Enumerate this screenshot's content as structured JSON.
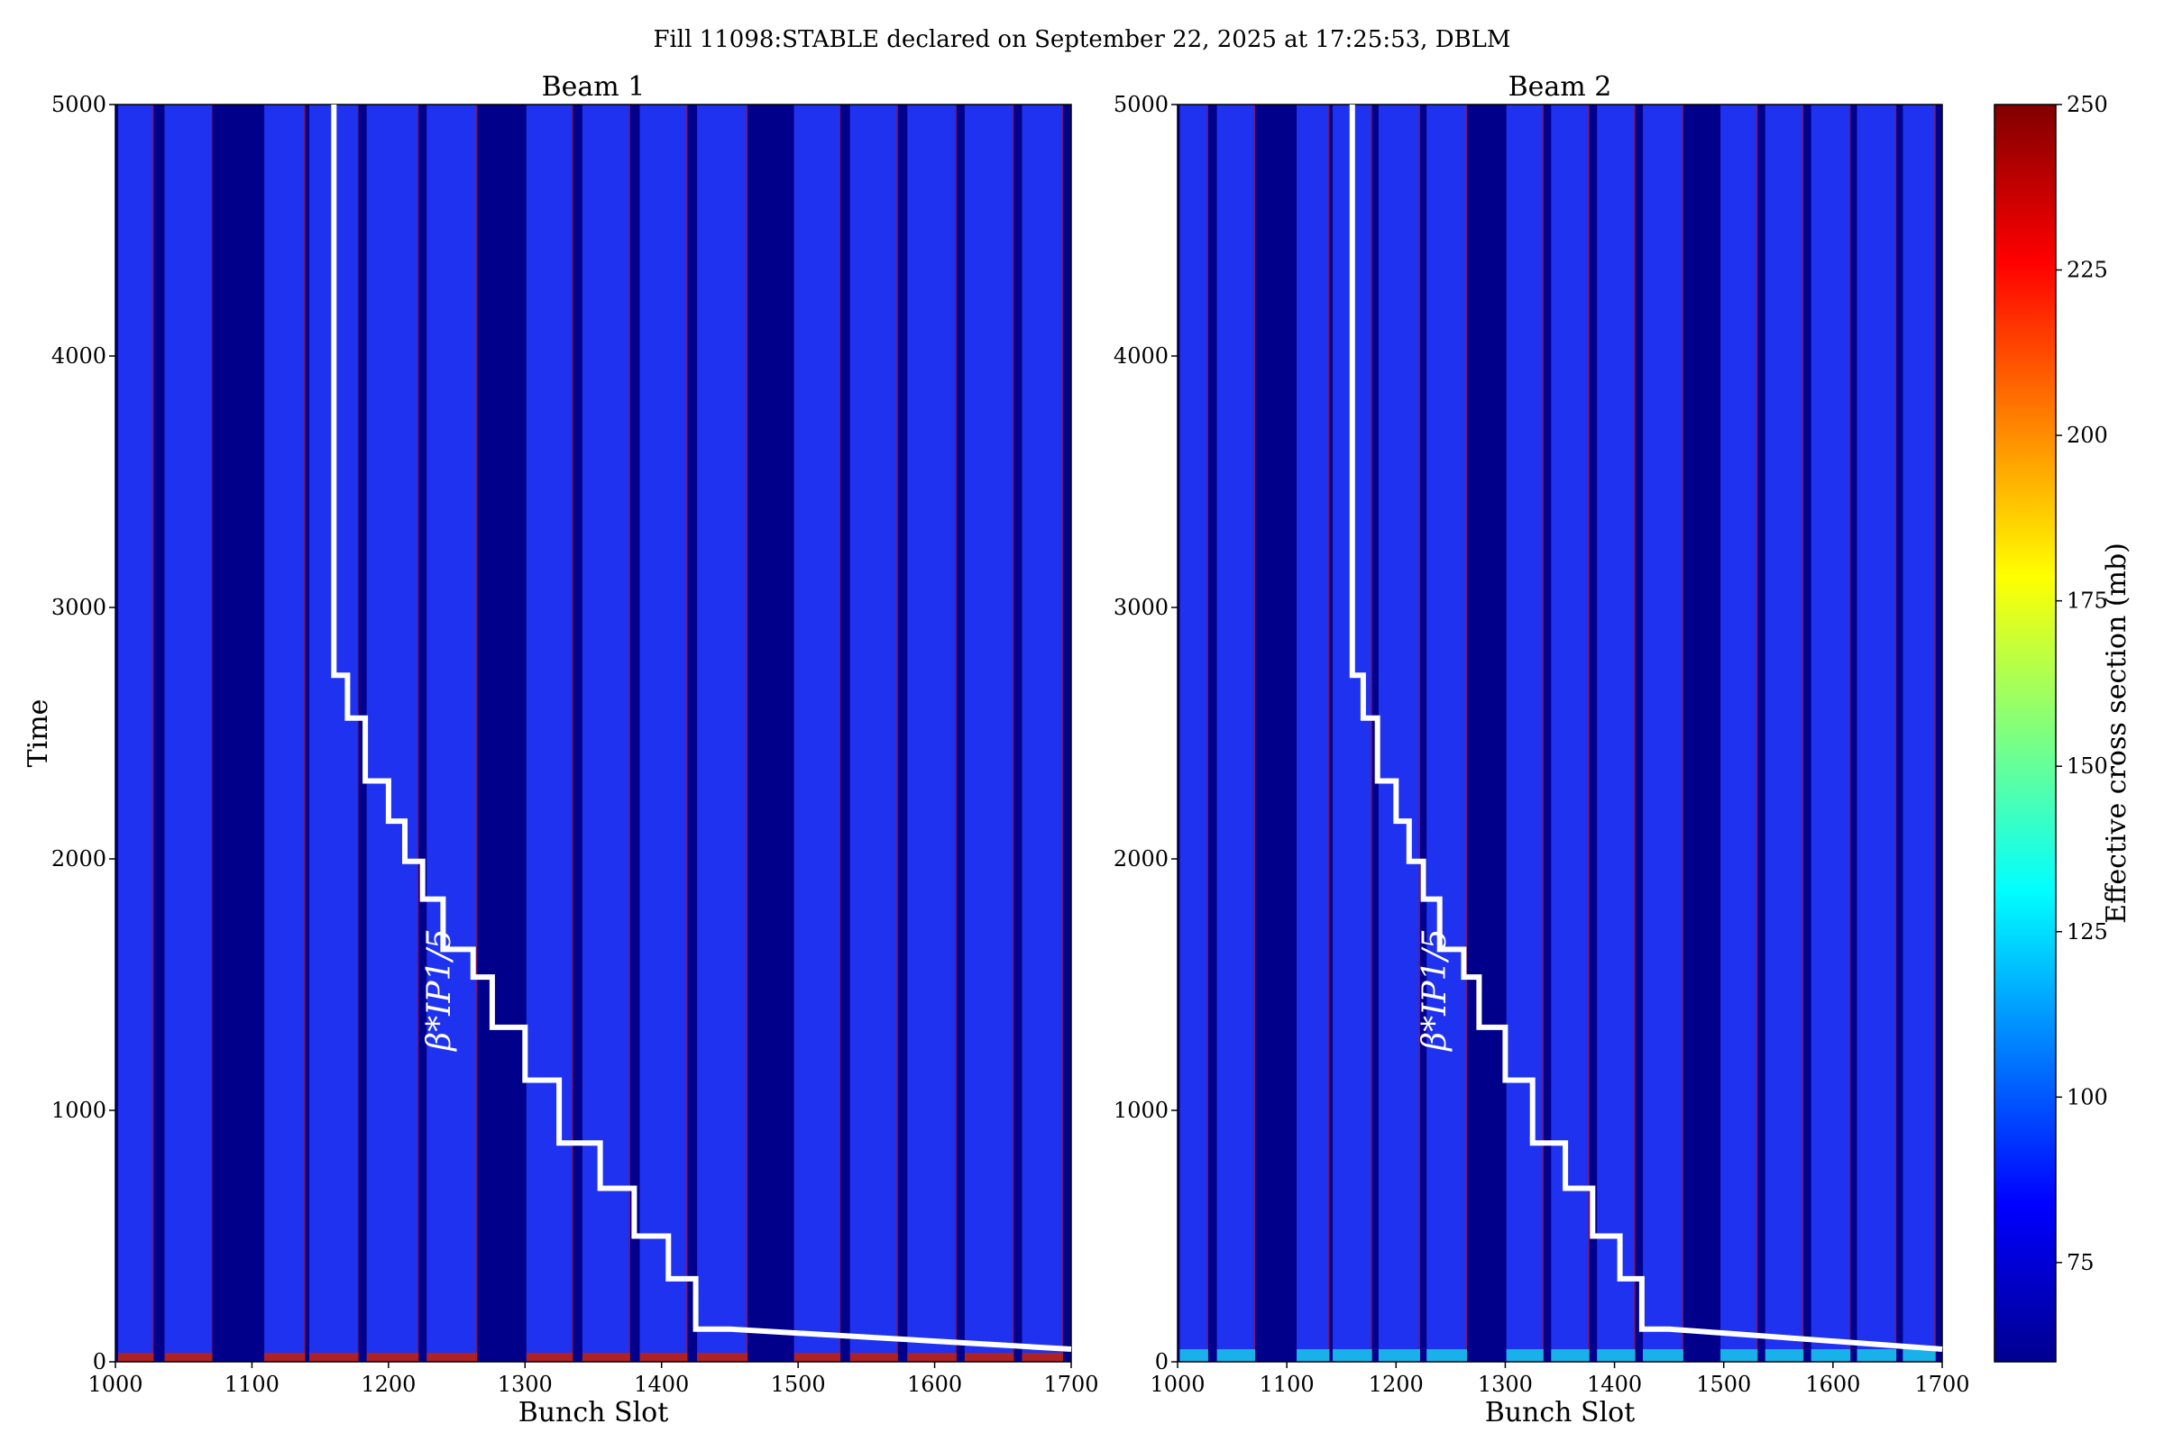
{
  "chart_data": {
    "type": "heatmap",
    "title": "Fill 11098:STABLE declared on September 22, 2025 at 17:25:53, DBLM",
    "xlabel": "Bunch Slot",
    "ylabel": "Time",
    "xlim": [
      1000,
      1700
    ],
    "ylim": [
      0,
      5000
    ],
    "xticks": [
      1000,
      1100,
      1200,
      1300,
      1400,
      1500,
      1600,
      1700
    ],
    "yticks": [
      0,
      1000,
      2000,
      3000,
      4000,
      5000
    ],
    "colorbar": {
      "label": "Effective cross section (mb)",
      "min": 60,
      "max": 250,
      "ticks": [
        75,
        100,
        125,
        150,
        175,
        200,
        225,
        250
      ],
      "colormap": "jet"
    },
    "colors": {
      "empty_slot": "#00008b",
      "filled_bunch": "#1e32f0",
      "step_line": "#ffffff",
      "edge_bunch": "#c80000"
    },
    "annotation": "β*IP1/5",
    "panels": [
      {
        "name": "Beam 1",
        "filled_trains": [
          [
            1002,
            1028
          ],
          [
            1036,
            1071
          ],
          [
            1109,
            1139
          ],
          [
            1142,
            1178
          ],
          [
            1184,
            1222
          ],
          [
            1228,
            1265
          ],
          [
            1301,
            1335
          ],
          [
            1342,
            1377
          ],
          [
            1384,
            1419
          ],
          [
            1426,
            1463
          ],
          [
            1497,
            1531
          ],
          [
            1538,
            1573
          ],
          [
            1580,
            1616
          ],
          [
            1622,
            1658
          ],
          [
            1664,
            1694
          ]
        ],
        "step_line": {
          "x": [
            1160,
            1160,
            1170,
            1170,
            1183,
            1183,
            1200,
            1200,
            1212,
            1212,
            1225,
            1225,
            1240,
            1240,
            1262,
            1262,
            1276,
            1276,
            1300,
            1300,
            1325,
            1325,
            1355,
            1355,
            1380,
            1380,
            1405,
            1405,
            1425,
            1425,
            1450,
            1700
          ],
          "y": [
            5000,
            2730,
            2730,
            2560,
            2560,
            2310,
            2310,
            2150,
            2150,
            1990,
            1990,
            1840,
            1840,
            1640,
            1640,
            1530,
            1530,
            1330,
            1330,
            1120,
            1120,
            870,
            870,
            690,
            690,
            500,
            500,
            330,
            330,
            130,
            130,
            50
          ]
        }
      },
      {
        "name": "Beam 2",
        "filled_trains": [
          [
            1002,
            1028
          ],
          [
            1036,
            1071
          ],
          [
            1109,
            1139
          ],
          [
            1142,
            1178
          ],
          [
            1184,
            1222
          ],
          [
            1228,
            1265
          ],
          [
            1301,
            1335
          ],
          [
            1342,
            1377
          ],
          [
            1384,
            1419
          ],
          [
            1426,
            1463
          ],
          [
            1497,
            1531
          ],
          [
            1538,
            1573
          ],
          [
            1580,
            1616
          ],
          [
            1622,
            1658
          ],
          [
            1664,
            1694
          ]
        ],
        "step_line": {
          "x": [
            1160,
            1160,
            1170,
            1170,
            1183,
            1183,
            1200,
            1200,
            1212,
            1212,
            1225,
            1225,
            1240,
            1240,
            1262,
            1262,
            1276,
            1276,
            1300,
            1300,
            1325,
            1325,
            1355,
            1355,
            1380,
            1380,
            1405,
            1405,
            1425,
            1425,
            1450,
            1700
          ],
          "y": [
            5000,
            2730,
            2730,
            2560,
            2560,
            2310,
            2310,
            2150,
            2150,
            1990,
            1990,
            1840,
            1840,
            1640,
            1640,
            1530,
            1530,
            1330,
            1330,
            1120,
            1120,
            870,
            870,
            690,
            690,
            500,
            500,
            330,
            330,
            130,
            130,
            50
          ]
        }
      }
    ]
  }
}
